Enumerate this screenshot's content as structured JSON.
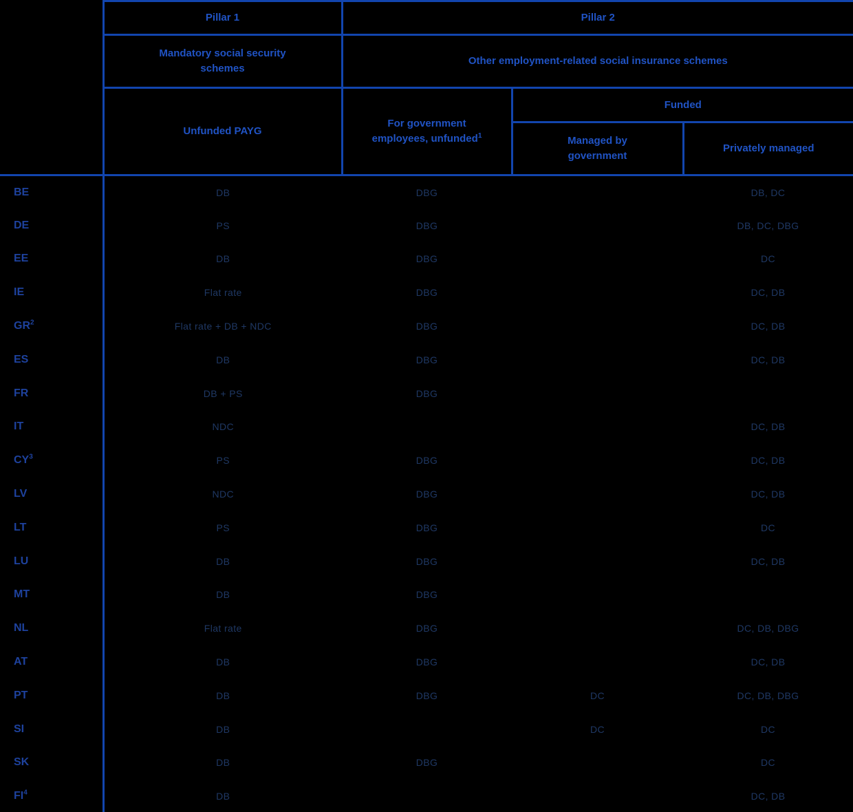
{
  "table": {
    "header": {
      "pillar1": "Pillar 1",
      "pillar2": "Pillar 2",
      "mandatory": [
        "Mandatory social security",
        "schemes"
      ],
      "other": "Other employment-related social insurance schemes",
      "unfunded_payg": "Unfunded PAYG",
      "gov_employees": [
        "For government",
        "employees, unfunded"
      ],
      "gov_employees_sup": "1",
      "funded": "Funded",
      "managed_gov": [
        "Managed by",
        "government"
      ],
      "privately_managed": "Privately managed"
    },
    "rows": [
      {
        "country": "BE",
        "sup": "",
        "payg": "DB",
        "gov": "DBG",
        "managed": "",
        "private": "DB, DC"
      },
      {
        "country": "DE",
        "sup": "",
        "payg": "PS",
        "gov": "DBG",
        "managed": "",
        "private": "DB, DC, DBG"
      },
      {
        "country": "EE",
        "sup": "",
        "payg": "DB",
        "gov": "DBG",
        "managed": "",
        "private": "DC"
      },
      {
        "country": "IE",
        "sup": "",
        "payg": "Flat rate",
        "gov": "DBG",
        "managed": "",
        "private": "DC, DB"
      },
      {
        "country": "GR",
        "sup": "2",
        "payg": "Flat rate + DB + NDC",
        "gov": "DBG",
        "managed": "",
        "private": "DC, DB"
      },
      {
        "country": "ES",
        "sup": "",
        "payg": "DB",
        "gov": "DBG",
        "managed": "",
        "private": "DC, DB"
      },
      {
        "country": "FR",
        "sup": "",
        "payg": "DB + PS",
        "gov": "DBG",
        "managed": "",
        "private": ""
      },
      {
        "country": "IT",
        "sup": "",
        "payg": "NDC",
        "gov": "",
        "managed": "",
        "private": "DC, DB"
      },
      {
        "country": "CY",
        "sup": "3",
        "payg": "PS",
        "gov": "DBG",
        "managed": "",
        "private": "DC, DB"
      },
      {
        "country": "LV",
        "sup": "",
        "payg": "NDC",
        "gov": "DBG",
        "managed": "",
        "private": "DC, DB"
      },
      {
        "country": "LT",
        "sup": "",
        "payg": "PS",
        "gov": "DBG",
        "managed": "",
        "private": "DC"
      },
      {
        "country": "LU",
        "sup": "",
        "payg": "DB",
        "gov": "DBG",
        "managed": "",
        "private": "DC, DB"
      },
      {
        "country": "MT",
        "sup": "",
        "payg": "DB",
        "gov": "DBG",
        "managed": "",
        "private": ""
      },
      {
        "country": "NL",
        "sup": "",
        "payg": "Flat rate",
        "gov": "DBG",
        "managed": "",
        "private": "DC, DB, DBG"
      },
      {
        "country": "AT",
        "sup": "",
        "payg": "DB",
        "gov": "DBG",
        "managed": "",
        "private": "DC, DB"
      },
      {
        "country": "PT",
        "sup": "",
        "payg": "DB",
        "gov": "DBG",
        "managed": "DC",
        "private": "DC, DB, DBG"
      },
      {
        "country": "SI",
        "sup": "",
        "payg": "DB",
        "gov": "",
        "managed": "DC",
        "private": "DC"
      },
      {
        "country": "SK",
        "sup": "",
        "payg": "DB",
        "gov": "DBG",
        "managed": "",
        "private": "DC"
      },
      {
        "country": "FI",
        "sup": "4",
        "payg": "DB",
        "gov": "",
        "managed": "",
        "private": "DC, DB"
      }
    ],
    "colors": {
      "background": "#000000",
      "border": "#1245AE",
      "header_text": "#2053C4",
      "country_text": "#1E429E",
      "value_text": "#1F3864"
    }
  }
}
